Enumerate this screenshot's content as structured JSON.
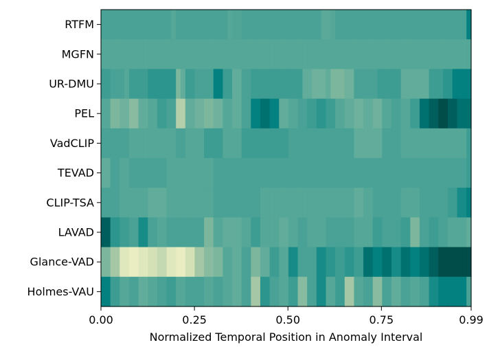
{
  "chart_data": {
    "type": "heatmap",
    "title": "",
    "xlabel": "Normalized Temporal Position in Anomaly Interval",
    "ylabel": "",
    "xlim": [
      0.0,
      0.99
    ],
    "x_ticks": [
      0.0,
      0.25,
      0.5,
      0.75,
      0.99
    ],
    "x_tick_labels": [
      "0.00",
      "0.25",
      "0.50",
      "0.75",
      "0.99"
    ],
    "rows": [
      "RTFM",
      "MGFN",
      "UR-DMU",
      "PEL",
      "VadCLIP",
      "TEVAD",
      "CLIP-TSA",
      "LAVAD",
      "Glance-VAD",
      "Holmes-VAU"
    ],
    "colormap": [
      "#004d4a",
      "#00807f",
      "#3a9c92",
      "#5caa99",
      "#80b89e",
      "#aac9a6",
      "#d6e2b8",
      "#f5f1c6"
    ],
    "value_range": [
      0,
      1
    ],
    "values": [
      [
        0.35,
        0.35,
        0.35,
        0.35,
        0.35,
        0.35,
        0.35,
        0.35,
        0.35,
        0.35,
        0.35,
        0.35,
        0.35,
        0.35,
        0.35,
        0.4,
        0.35,
        0.35,
        0.35,
        0.35,
        0.35,
        0.35,
        0.35,
        0.35,
        0.35,
        0.35,
        0.35,
        0.4,
        0.38,
        0.38,
        0.35,
        0.35,
        0.35,
        0.35,
        0.35,
        0.35,
        0.35,
        0.35,
        0.35,
        0.35,
        0.35,
        0.35,
        0.35,
        0.35,
        0.35,
        0.35,
        0.35,
        0.42,
        0.42,
        0.4,
        0.35,
        0.35,
        0.35,
        0.35,
        0.35,
        0.35,
        0.35,
        0.35,
        0.35,
        0.35,
        0.35,
        0.35,
        0.35,
        0.35,
        0.35,
        0.35,
        0.35,
        0.35,
        0.35,
        0.35,
        0.35,
        0.35,
        0.35,
        0.35,
        0.35,
        0.35,
        0.35,
        0.35,
        0.15
      ],
      [
        0.4,
        0.4,
        0.4,
        0.4,
        0.4,
        0.4,
        0.4,
        0.4,
        0.4,
        0.4,
        0.4,
        0.4,
        0.4,
        0.4,
        0.4,
        0.4,
        0.4,
        0.4,
        0.4,
        0.4,
        0.4,
        0.4,
        0.4,
        0.4,
        0.4,
        0.4,
        0.4,
        0.4,
        0.4,
        0.4,
        0.4,
        0.4,
        0.4,
        0.4,
        0.4,
        0.4,
        0.4,
        0.4,
        0.4,
        0.4,
        0.4,
        0.4,
        0.4,
        0.4,
        0.4,
        0.4,
        0.4,
        0.4,
        0.4,
        0.4,
        0.4,
        0.4,
        0.4,
        0.4,
        0.4,
        0.4,
        0.4,
        0.4,
        0.4,
        0.4,
        0.4,
        0.4,
        0.4,
        0.4,
        0.4,
        0.4,
        0.4,
        0.4,
        0.4,
        0.4,
        0.4,
        0.4,
        0.4,
        0.4,
        0.4,
        0.4,
        0.4,
        0.4,
        0.4
      ],
      [
        0.3,
        0.3,
        0.35,
        0.35,
        0.35,
        0.4,
        0.3,
        0.3,
        0.3,
        0.3,
        0.25,
        0.25,
        0.25,
        0.25,
        0.25,
        0.25,
        0.55,
        0.45,
        0.3,
        0.3,
        0.35,
        0.35,
        0.35,
        0.35,
        0.15,
        0.15,
        0.3,
        0.3,
        0.45,
        0.45,
        0.35,
        0.35,
        0.3,
        0.3,
        0.3,
        0.3,
        0.3,
        0.3,
        0.3,
        0.3,
        0.3,
        0.3,
        0.3,
        0.45,
        0.45,
        0.5,
        0.5,
        0.5,
        0.45,
        0.55,
        0.55,
        0.55,
        0.5,
        0.5,
        0.35,
        0.35,
        0.35,
        0.35,
        0.35,
        0.3,
        0.3,
        0.3,
        0.3,
        0.3,
        0.45,
        0.45,
        0.45,
        0.45,
        0.45,
        0.45,
        0.3,
        0.3,
        0.3,
        0.25,
        0.25,
        0.15,
        0.15,
        0.15,
        0.15
      ],
      [
        0.4,
        0.4,
        0.55,
        0.55,
        0.5,
        0.5,
        0.6,
        0.6,
        0.45,
        0.45,
        0.4,
        0.4,
        0.3,
        0.3,
        0.35,
        0.35,
        0.75,
        0.75,
        0.45,
        0.45,
        0.5,
        0.5,
        0.55,
        0.55,
        0.5,
        0.5,
        0.4,
        0.4,
        0.45,
        0.45,
        0.35,
        0.35,
        0.15,
        0.15,
        0.1,
        0.1,
        0.15,
        0.15,
        0.45,
        0.45,
        0.4,
        0.4,
        0.35,
        0.35,
        0.3,
        0.3,
        0.25,
        0.25,
        0.3,
        0.3,
        0.4,
        0.4,
        0.45,
        0.45,
        0.5,
        0.5,
        0.45,
        0.45,
        0.5,
        0.5,
        0.4,
        0.4,
        0.35,
        0.35,
        0.4,
        0.4,
        0.3,
        0.3,
        0.1,
        0.1,
        0.05,
        0.05,
        0.0,
        0.0,
        0.05,
        0.05,
        0.1,
        0.1,
        0.1
      ],
      [
        0.35,
        0.35,
        0.35,
        0.35,
        0.35,
        0.35,
        0.4,
        0.4,
        0.4,
        0.4,
        0.4,
        0.4,
        0.4,
        0.4,
        0.4,
        0.4,
        0.35,
        0.35,
        0.4,
        0.4,
        0.4,
        0.4,
        0.3,
        0.3,
        0.3,
        0.3,
        0.4,
        0.4,
        0.4,
        0.4,
        0.3,
        0.3,
        0.3,
        0.3,
        0.3,
        0.3,
        0.3,
        0.3,
        0.3,
        0.3,
        0.35,
        0.35,
        0.35,
        0.35,
        0.35,
        0.35,
        0.35,
        0.35,
        0.35,
        0.35,
        0.35,
        0.35,
        0.35,
        0.35,
        0.45,
        0.45,
        0.45,
        0.45,
        0.45,
        0.45,
        0.35,
        0.35,
        0.35,
        0.35,
        0.4,
        0.4,
        0.4,
        0.4,
        0.4,
        0.4,
        0.4,
        0.4,
        0.4,
        0.4,
        0.4,
        0.4,
        0.4,
        0.4,
        0.3
      ],
      [
        0.45,
        0.45,
        0.35,
        0.35,
        0.4,
        0.4,
        0.35,
        0.35,
        0.35,
        0.35,
        0.35,
        0.35,
        0.35,
        0.35,
        0.4,
        0.4,
        0.4,
        0.4,
        0.4,
        0.4,
        0.4,
        0.4,
        0.4,
        0.4,
        0.35,
        0.35,
        0.35,
        0.35,
        0.35,
        0.35,
        0.35,
        0.35,
        0.35,
        0.35,
        0.35,
        0.35,
        0.35,
        0.35,
        0.35,
        0.35,
        0.35,
        0.35,
        0.35,
        0.35,
        0.35,
        0.35,
        0.35,
        0.35,
        0.35,
        0.35,
        0.35,
        0.35,
        0.35,
        0.35,
        0.35,
        0.35,
        0.35,
        0.35,
        0.35,
        0.35,
        0.35,
        0.35,
        0.35,
        0.35,
        0.35,
        0.35,
        0.35,
        0.35,
        0.35,
        0.35,
        0.35,
        0.35,
        0.35,
        0.35,
        0.35,
        0.35,
        0.35,
        0.35,
        0.3
      ],
      [
        0.35,
        0.35,
        0.35,
        0.35,
        0.4,
        0.4,
        0.4,
        0.4,
        0.4,
        0.4,
        0.45,
        0.45,
        0.45,
        0.45,
        0.4,
        0.4,
        0.4,
        0.4,
        0.4,
        0.4,
        0.4,
        0.4,
        0.4,
        0.4,
        0.35,
        0.35,
        0.35,
        0.35,
        0.35,
        0.35,
        0.35,
        0.35,
        0.35,
        0.35,
        0.4,
        0.4,
        0.4,
        0.4,
        0.4,
        0.4,
        0.4,
        0.4,
        0.4,
        0.4,
        0.4,
        0.4,
        0.4,
        0.4,
        0.4,
        0.4,
        0.4,
        0.4,
        0.4,
        0.4,
        0.45,
        0.45,
        0.4,
        0.4,
        0.35,
        0.35,
        0.35,
        0.35,
        0.35,
        0.35,
        0.4,
        0.4,
        0.4,
        0.4,
        0.35,
        0.35,
        0.35,
        0.35,
        0.35,
        0.35,
        0.3,
        0.3,
        0.2,
        0.2,
        0.15
      ],
      [
        0.05,
        0.05,
        0.25,
        0.25,
        0.3,
        0.3,
        0.35,
        0.35,
        0.2,
        0.2,
        0.35,
        0.35,
        0.4,
        0.4,
        0.35,
        0.35,
        0.35,
        0.35,
        0.35,
        0.35,
        0.35,
        0.35,
        0.55,
        0.55,
        0.4,
        0.4,
        0.45,
        0.45,
        0.45,
        0.45,
        0.4,
        0.4,
        0.3,
        0.3,
        0.4,
        0.4,
        0.4,
        0.4,
        0.45,
        0.45,
        0.4,
        0.4,
        0.35,
        0.35,
        0.4,
        0.4,
        0.4,
        0.4,
        0.35,
        0.35,
        0.35,
        0.35,
        0.35,
        0.35,
        0.4,
        0.4,
        0.4,
        0.4,
        0.3,
        0.3,
        0.35,
        0.35,
        0.35,
        0.35,
        0.3,
        0.3,
        0.55,
        0.55,
        0.35,
        0.35,
        0.3,
        0.3,
        0.35,
        0.35,
        0.4,
        0.4,
        0.4,
        0.4,
        0.45
      ],
      [
        0.55,
        0.55,
        0.7,
        0.7,
        0.9,
        0.9,
        0.95,
        0.95,
        0.9,
        0.9,
        0.85,
        0.85,
        0.8,
        0.8,
        0.9,
        0.9,
        0.95,
        0.95,
        0.85,
        0.85,
        0.7,
        0.7,
        0.6,
        0.6,
        0.55,
        0.55,
        0.4,
        0.4,
        0.45,
        0.45,
        0.35,
        0.35,
        0.55,
        0.55,
        0.45,
        0.45,
        0.3,
        0.3,
        0.4,
        0.4,
        0.2,
        0.2,
        0.35,
        0.35,
        0.35,
        0.35,
        0.2,
        0.2,
        0.25,
        0.25,
        0.3,
        0.3,
        0.25,
        0.25,
        0.3,
        0.3,
        0.1,
        0.1,
        0.15,
        0.15,
        0.1,
        0.1,
        0.2,
        0.2,
        0.1,
        0.1,
        0.15,
        0.15,
        0.1,
        0.1,
        0.05,
        0.05,
        0.0,
        0.0,
        0.0,
        0.0,
        0.0,
        0.0,
        0.0
      ],
      [
        0.15,
        0.15,
        0.3,
        0.3,
        0.4,
        0.4,
        0.35,
        0.35,
        0.45,
        0.45,
        0.4,
        0.4,
        0.35,
        0.35,
        0.3,
        0.3,
        0.4,
        0.4,
        0.35,
        0.35,
        0.35,
        0.35,
        0.4,
        0.4,
        0.35,
        0.35,
        0.4,
        0.4,
        0.45,
        0.45,
        0.35,
        0.35,
        0.7,
        0.7,
        0.25,
        0.25,
        0.35,
        0.35,
        0.4,
        0.4,
        0.3,
        0.3,
        0.6,
        0.6,
        0.35,
        0.35,
        0.2,
        0.2,
        0.4,
        0.4,
        0.3,
        0.3,
        0.7,
        0.7,
        0.4,
        0.4,
        0.35,
        0.35,
        0.6,
        0.6,
        0.35,
        0.35,
        0.45,
        0.45,
        0.35,
        0.35,
        0.4,
        0.4,
        0.35,
        0.35,
        0.2,
        0.2,
        0.15,
        0.15,
        0.15,
        0.15,
        0.15,
        0.15,
        0.35
      ]
    ]
  }
}
